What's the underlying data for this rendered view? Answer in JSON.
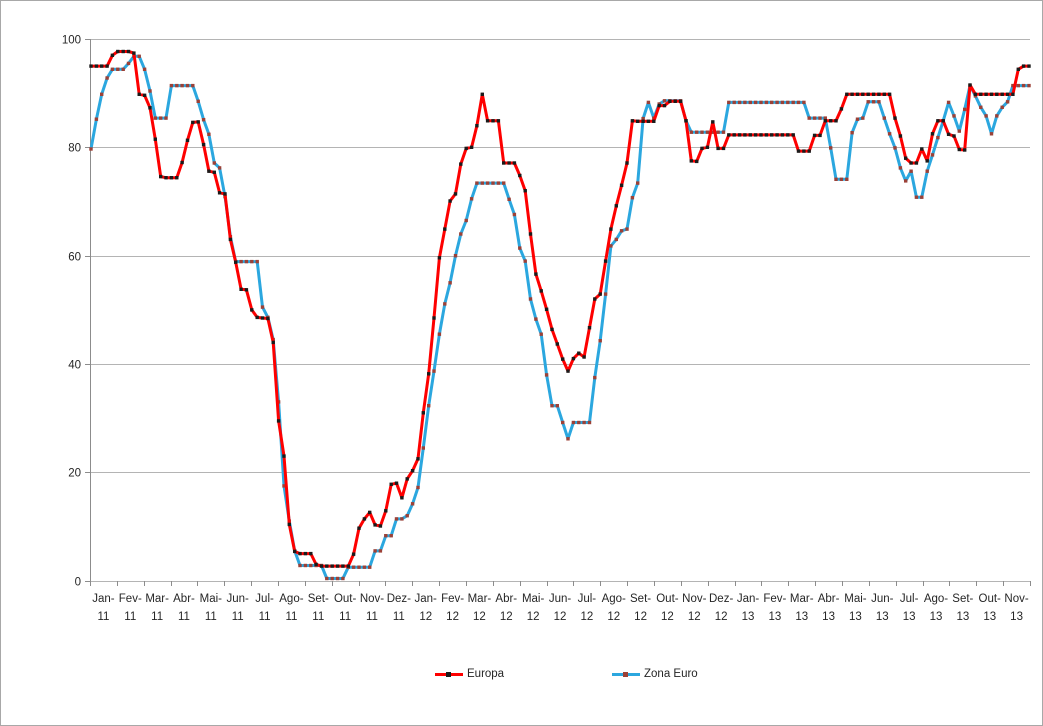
{
  "chart_data": {
    "type": "line",
    "title": "",
    "xlabel": "",
    "ylabel": "",
    "ylim": [
      0,
      100
    ],
    "yticks": [
      0,
      20,
      40,
      60,
      80,
      100
    ],
    "grid": true,
    "legend_position": "bottom",
    "points_per_month": 5,
    "categories": [
      {
        "m": "Jan-",
        "y": "11"
      },
      {
        "m": "Fev-",
        "y": "11"
      },
      {
        "m": "Mar-",
        "y": "11"
      },
      {
        "m": "Abr-",
        "y": "11"
      },
      {
        "m": "Mai-",
        "y": "11"
      },
      {
        "m": "Jun-",
        "y": "11"
      },
      {
        "m": "Jul-",
        "y": "11"
      },
      {
        "m": "Ago-",
        "y": "11"
      },
      {
        "m": "Set-",
        "y": "11"
      },
      {
        "m": "Out-",
        "y": "11"
      },
      {
        "m": "Nov-",
        "y": "11"
      },
      {
        "m": "Dez-",
        "y": "11"
      },
      {
        "m": "Jan-",
        "y": "12"
      },
      {
        "m": "Fev-",
        "y": "12"
      },
      {
        "m": "Mar-",
        "y": "12"
      },
      {
        "m": "Abr-",
        "y": "12"
      },
      {
        "m": "Mai-",
        "y": "12"
      },
      {
        "m": "Jun-",
        "y": "12"
      },
      {
        "m": "Jul-",
        "y": "12"
      },
      {
        "m": "Ago-",
        "y": "12"
      },
      {
        "m": "Set-",
        "y": "12"
      },
      {
        "m": "Out-",
        "y": "12"
      },
      {
        "m": "Nov-",
        "y": "12"
      },
      {
        "m": "Dez-",
        "y": "12"
      },
      {
        "m": "Jan-",
        "y": "13"
      },
      {
        "m": "Fev-",
        "y": "13"
      },
      {
        "m": "Mar-",
        "y": "13"
      },
      {
        "m": "Abr-",
        "y": "13"
      },
      {
        "m": "Mai-",
        "y": "13"
      },
      {
        "m": "Jun-",
        "y": "13"
      },
      {
        "m": "Jul-",
        "y": "13"
      },
      {
        "m": "Ago-",
        "y": "13"
      },
      {
        "m": "Set-",
        "y": "13"
      },
      {
        "m": "Out-",
        "y": "13"
      },
      {
        "m": "Nov-",
        "y": "13"
      }
    ],
    "series": [
      {
        "name": "Europa",
        "color": "#FE0000",
        "marker_color": "#1b1b1b",
        "values": [
          95,
          95,
          95,
          95,
          97,
          97.7,
          97.7,
          97.7,
          97.4,
          89.8,
          89.6,
          87.3,
          81.5,
          74.6,
          74.4,
          74.4,
          74.4,
          77.2,
          81.3,
          84.6,
          84.7,
          80.5,
          75.6,
          75.4,
          71.6,
          71.4,
          63,
          58.8,
          53.8,
          53.7,
          50,
          48.6,
          48.5,
          48.4,
          44,
          29.5,
          23,
          10.4,
          5.4,
          5,
          5,
          5,
          3,
          2.7,
          2.7,
          2.7,
          2.7,
          2.7,
          2.7,
          4.9,
          9.7,
          11.4,
          12.6,
          10.3,
          10.1,
          12.9,
          17.8,
          18,
          15.3,
          18.8,
          20.3,
          22.5,
          31,
          38.2,
          48.5,
          59.6,
          64.9,
          70.1,
          71.4,
          76.9,
          79.8,
          80,
          84,
          89.8,
          84.9,
          84.9,
          84.9,
          77.1,
          77.1,
          77.1,
          74.8,
          72,
          64,
          56.6,
          53.5,
          50.1,
          46.4,
          43.7,
          40.9,
          38.7,
          41,
          42,
          41.3,
          46.7,
          52,
          52.9,
          59,
          64.9,
          69.2,
          73,
          77.1,
          84.9,
          84.8,
          84.8,
          84.8,
          84.8,
          87.7,
          87.7,
          88.5,
          88.5,
          88.5,
          84.9,
          77.5,
          77.4,
          79.8,
          80,
          84.7,
          79.8,
          79.8,
          82.3,
          82.3,
          82.3,
          82.3,
          82.3,
          82.3,
          82.3,
          82.3,
          82.3,
          82.3,
          82.3,
          82.3,
          82.3,
          79.3,
          79.3,
          79.3,
          82.2,
          82.2,
          84.9,
          84.9,
          84.9,
          87.1,
          89.8,
          89.8,
          89.8,
          89.8,
          89.8,
          89.8,
          89.8,
          89.8,
          89.8,
          85.4,
          82.1,
          78,
          77.1,
          77.1,
          79.7,
          77.5,
          82.5,
          84.9,
          84.9,
          82.4,
          82.1,
          79.6,
          79.5,
          91.5,
          89.8,
          89.8,
          89.8,
          89.8,
          89.8,
          89.8,
          89.8,
          89.8,
          94.4,
          95,
          95
        ]
      },
      {
        "name": "Zona Euro",
        "color": "#2BA7DF",
        "marker_color": "#9c4137",
        "values": [
          79.7,
          85.2,
          89.8,
          92.8,
          94.4,
          94.4,
          94.4,
          95.5,
          96.8,
          96.8,
          94.4,
          90.4,
          85.4,
          85.4,
          85.4,
          91.4,
          91.4,
          91.4,
          91.4,
          91.4,
          88.5,
          85.1,
          82.4,
          77.1,
          76.2,
          70.9,
          63.5,
          58.9,
          58.9,
          58.9,
          58.9,
          58.9,
          50.5,
          48.6,
          44.5,
          33,
          17.5,
          11,
          5.5,
          2.8,
          2.8,
          2.8,
          2.8,
          2.8,
          0.4,
          0.4,
          0.4,
          0.4,
          2.5,
          2.5,
          2.5,
          2.5,
          2.5,
          5.5,
          5.5,
          8.3,
          8.3,
          11.4,
          11.4,
          12,
          14.2,
          17.2,
          24.5,
          32.3,
          38.7,
          45.5,
          51.1,
          55,
          60,
          64,
          66.5,
          70.5,
          73.4,
          73.4,
          73.4,
          73.4,
          73.4,
          73.4,
          70.4,
          67.6,
          61.4,
          59,
          52,
          48.3,
          45.5,
          38,
          32.3,
          32.3,
          29.2,
          26.2,
          29.2,
          29.2,
          29.2,
          29.2,
          37.5,
          44.3,
          52.9,
          61.8,
          63,
          64.6,
          64.9,
          70.7,
          73.4,
          85.3,
          88.3,
          85.4,
          88,
          88.6,
          88.6,
          88.6,
          88.6,
          84.9,
          82.8,
          82.8,
          82.8,
          82.8,
          82.8,
          82.8,
          82.8,
          88.3,
          88.3,
          88.3,
          88.3,
          88.3,
          88.3,
          88.3,
          88.3,
          88.3,
          88.3,
          88.3,
          88.3,
          88.3,
          88.3,
          88.3,
          85.4,
          85.4,
          85.4,
          85.4,
          79.9,
          74.1,
          74.1,
          74.1,
          82.7,
          85.2,
          85.4,
          88.4,
          88.4,
          88.4,
          85.4,
          82.5,
          79.9,
          76.2,
          73.8,
          75.6,
          70.8,
          70.8,
          75.6,
          78.6,
          81.8,
          84.9,
          88.3,
          85.8,
          83,
          87,
          91.4,
          89.5,
          87.4,
          85.8,
          82.5,
          85.8,
          87.4,
          88.4,
          91.4,
          91.4,
          91.4,
          91.4
        ]
      }
    ],
    "colors": {
      "grid": "#b4b4b4",
      "axis": "#8c8c8c",
      "label_text": "#262626",
      "frame_border": "#a8a8a8"
    }
  }
}
